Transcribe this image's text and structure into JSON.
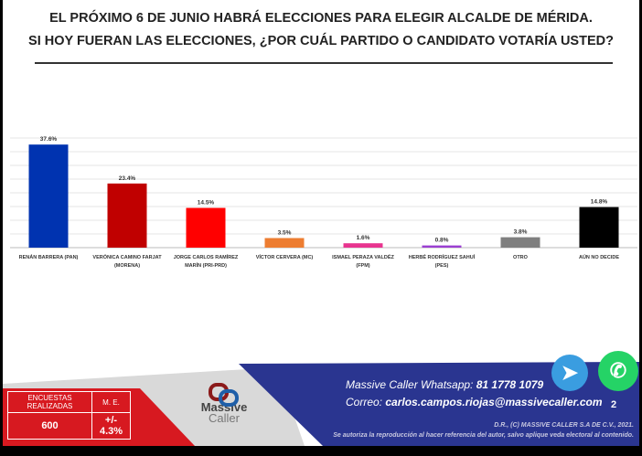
{
  "title_line1": "EL PRÓXIMO 6 DE JUNIO HABRÁ ELECCIONES PARA ELEGIR ALCALDE DE MÉRIDA.",
  "title_line2": "SI HOY FUERAN LAS ELECCIONES, ¿POR CUÁL PARTIDO O CANDIDATO VOTARÍA USTED?",
  "chart_data": {
    "type": "bar",
    "title": "SI HOY FUERAN LAS ELECCIONES, ¿POR CUÁL PARTIDO O CANDIDATO VOTARÍA USTED?",
    "categories": [
      [
        "RENÁN BARRERA (PAN)"
      ],
      [
        "VERÓNICA CAMINO FARJAT",
        "(MORENA)"
      ],
      [
        "JORGE CARLOS RAMÍREZ",
        "MARÍN (PRI-PRD)"
      ],
      [
        "VÍCTOR CERVERA (MC)"
      ],
      [
        "ISMAEL PERAZA VALDÉZ",
        "(FPM)"
      ],
      [
        "HERBÉ RODRÍGUEZ SAHUÍ",
        "(PES)"
      ],
      [
        "OTRO"
      ],
      [
        "AÚN NO DECIDE"
      ]
    ],
    "values": [
      37.6,
      23.4,
      14.5,
      3.5,
      1.6,
      0.8,
      3.8,
      14.8
    ],
    "labels": [
      "37.6%",
      "23.4%",
      "14.5%",
      "3.5%",
      "1.6%",
      "0.8%",
      "3.8%",
      "14.8%"
    ],
    "colors": [
      "#0033b0",
      "#c00000",
      "#ff0000",
      "#ed7d31",
      "#e8348f",
      "#9b3fd1",
      "#7f7f7f",
      "#000000"
    ],
    "ylim": [
      0,
      40
    ],
    "grid": true,
    "xlabel": "",
    "ylabel": ""
  },
  "stats": {
    "h1": "ENCUESTAS REALIZADAS",
    "h2": "M. E.",
    "v1": "600",
    "v2": "+/- 4.3%"
  },
  "logo": {
    "line1": "Massive",
    "line2": "Caller"
  },
  "contact": {
    "whatsapp_label": "Massive Caller Whatsapp: ",
    "whatsapp": "81 1778 1079",
    "email_label": "Correo: ",
    "email": "carlos.campos.riojas@massivecaller.com",
    "page": "2"
  },
  "legal1": "D.R., (C) MASSIVE CALLER S.A DE C.V., 2021.",
  "legal2": "Se autoriza la reproducción al hacer referencia del autor, salvo aplique veda electoral al contenido."
}
